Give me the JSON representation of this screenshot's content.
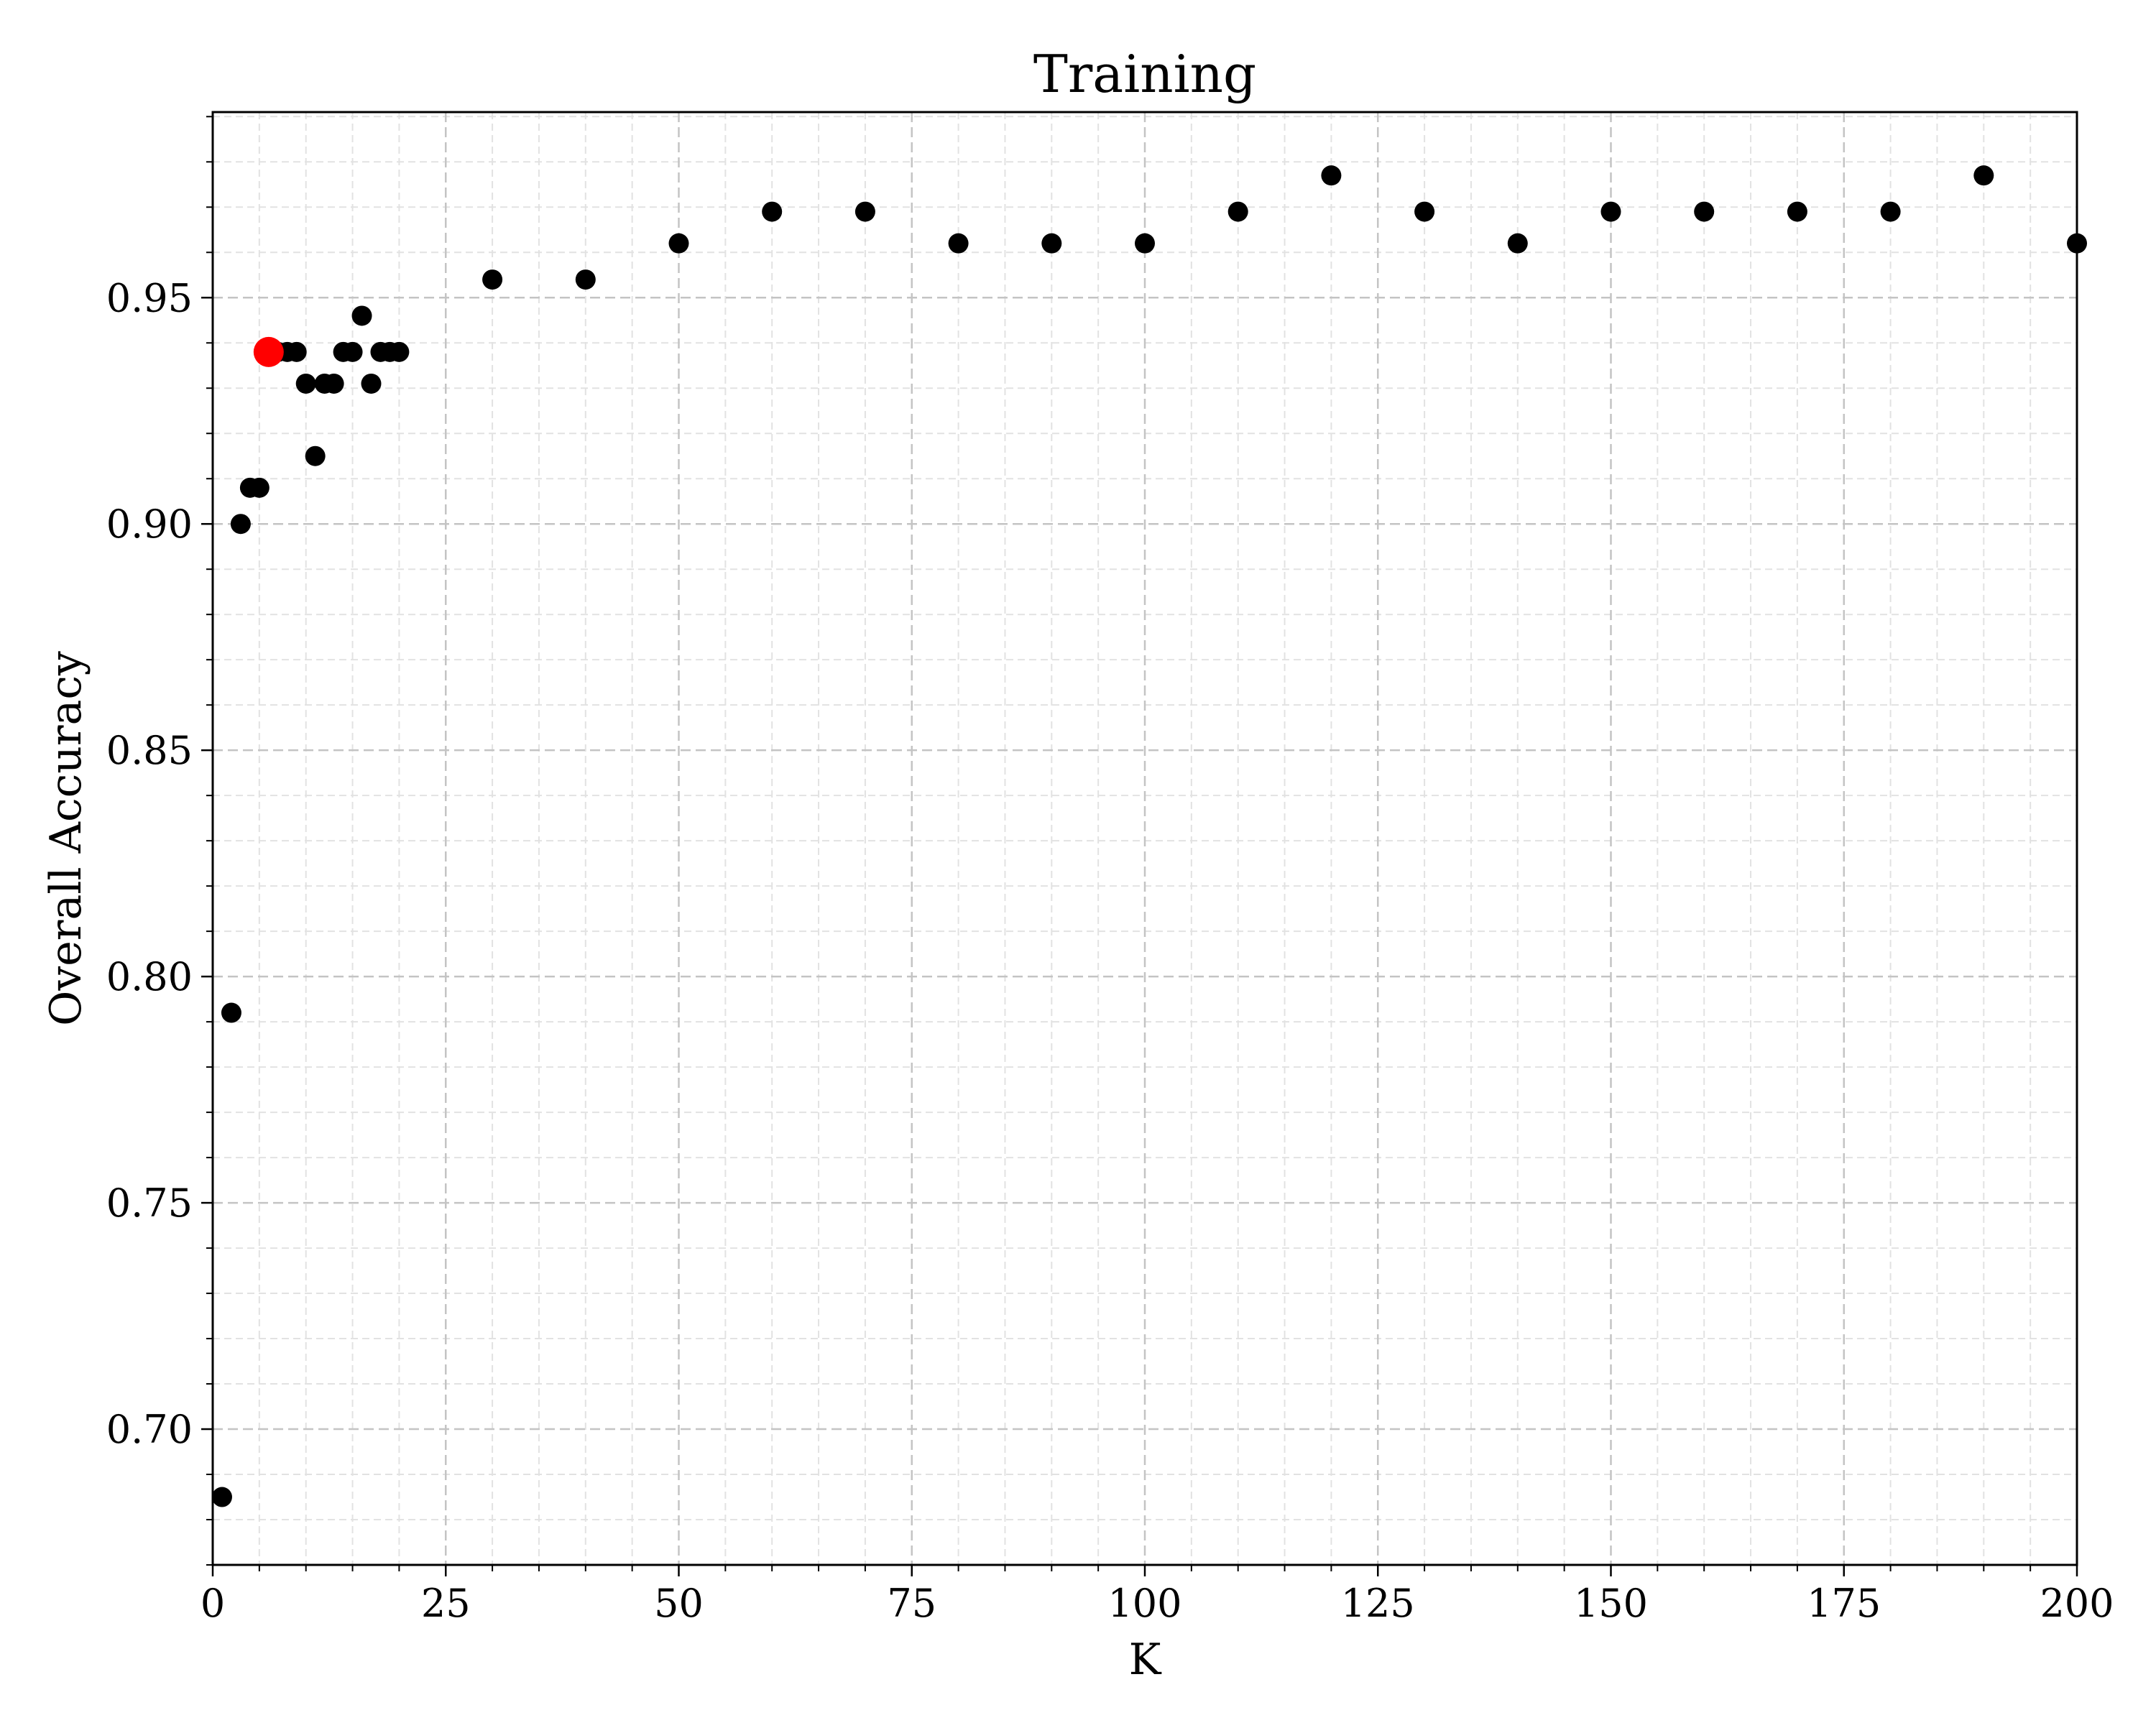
{
  "chart_data": {
    "type": "scatter",
    "title": "Training",
    "xlabel": "K",
    "ylabel": "Overall Accuracy",
    "xlim": [
      0,
      200
    ],
    "ylim": [
      0.67,
      0.991
    ],
    "grid": true,
    "x_ticks": [
      0,
      25,
      50,
      75,
      100,
      125,
      150,
      175,
      200
    ],
    "x_tick_labels": [
      "0",
      "25",
      "50",
      "75",
      "100",
      "125",
      "150",
      "175",
      "200"
    ],
    "y_ticks": [
      0.7,
      0.75,
      0.8,
      0.85,
      0.9,
      0.95
    ],
    "y_tick_labels": [
      "0.70",
      "0.75",
      "0.80",
      "0.85",
      "0.90",
      "0.95"
    ],
    "series": [
      {
        "color": "#000000",
        "points": [
          {
            "x": 1,
            "y": 0.685
          },
          {
            "x": 2,
            "y": 0.792
          },
          {
            "x": 3,
            "y": 0.9
          },
          {
            "x": 4,
            "y": 0.908
          },
          {
            "x": 5,
            "y": 0.908
          },
          {
            "x": 7,
            "y": 0.938
          },
          {
            "x": 8,
            "y": 0.938
          },
          {
            "x": 9,
            "y": 0.938
          },
          {
            "x": 10,
            "y": 0.931
          },
          {
            "x": 11,
            "y": 0.915
          },
          {
            "x": 12,
            "y": 0.931
          },
          {
            "x": 13,
            "y": 0.931
          },
          {
            "x": 14,
            "y": 0.938
          },
          {
            "x": 15,
            "y": 0.938
          },
          {
            "x": 16,
            "y": 0.946
          },
          {
            "x": 17,
            "y": 0.931
          },
          {
            "x": 18,
            "y": 0.938
          },
          {
            "x": 19,
            "y": 0.938
          },
          {
            "x": 20,
            "y": 0.938
          },
          {
            "x": 30,
            "y": 0.954
          },
          {
            "x": 40,
            "y": 0.954
          },
          {
            "x": 50,
            "y": 0.962
          },
          {
            "x": 60,
            "y": 0.969
          },
          {
            "x": 70,
            "y": 0.969
          },
          {
            "x": 80,
            "y": 0.962
          },
          {
            "x": 90,
            "y": 0.962
          },
          {
            "x": 100,
            "y": 0.962
          },
          {
            "x": 110,
            "y": 0.969
          },
          {
            "x": 120,
            "y": 0.977
          },
          {
            "x": 130,
            "y": 0.969
          },
          {
            "x": 140,
            "y": 0.962
          },
          {
            "x": 150,
            "y": 0.969
          },
          {
            "x": 160,
            "y": 0.969
          },
          {
            "x": 170,
            "y": 0.969
          },
          {
            "x": 180,
            "y": 0.969
          },
          {
            "x": 190,
            "y": 0.977
          },
          {
            "x": 200,
            "y": 0.962
          }
        ]
      },
      {
        "color": "#ff0000",
        "highlight": true,
        "points": [
          {
            "x": 6,
            "y": 0.938
          }
        ]
      }
    ]
  }
}
